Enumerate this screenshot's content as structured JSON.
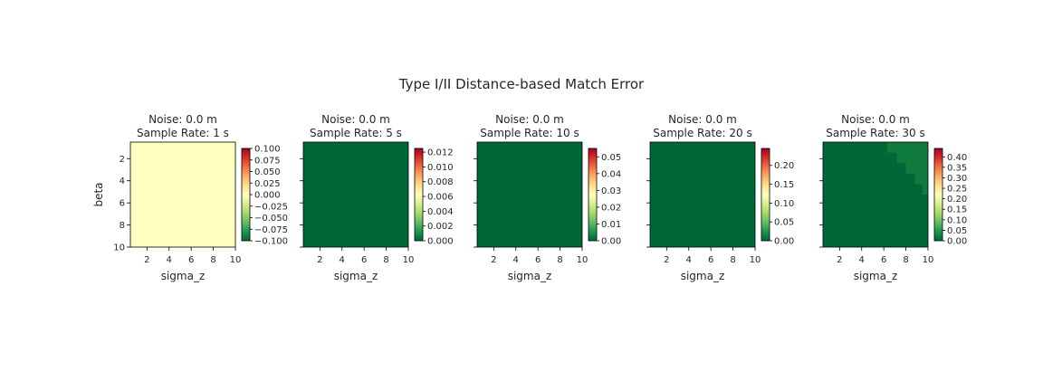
{
  "figure": {
    "title": "Type I/II Distance-based Match Error"
  },
  "chart_data": [
    {
      "type": "heatmap",
      "title_line1": "Noise: 0.0 m",
      "title_line2": "Sample Rate: 1 s",
      "xlabel": "sigma_z",
      "ylabel": "beta",
      "xlim": [
        0.5,
        10
      ],
      "ylim": [
        10,
        0.5
      ],
      "xticks": [
        "2",
        "4",
        "6",
        "8",
        "10"
      ],
      "yticks": [
        "2",
        "4",
        "6",
        "8",
        "10"
      ],
      "colorbar": {
        "min": -0.1,
        "max": 0.1,
        "ticks": [
          "0.100",
          "0.075",
          "0.050",
          "0.025",
          "0.000",
          "−0.025",
          "−0.050",
          "−0.075",
          "−0.100"
        ]
      },
      "fill_color": "#ffffbf",
      "pattern": "uniform"
    },
    {
      "type": "heatmap",
      "title_line1": "Noise: 0.0 m",
      "title_line2": "Sample Rate: 5 s",
      "xlabel": "sigma_z",
      "xlim": [
        0.5,
        10
      ],
      "ylim": [
        10,
        0.5
      ],
      "xticks": [
        "2",
        "4",
        "6",
        "8",
        "10"
      ],
      "colorbar": {
        "min": 0.0,
        "max": 0.0125,
        "ticks": [
          "0.012",
          "0.010",
          "0.008",
          "0.006",
          "0.004",
          "0.002",
          "0.000"
        ]
      },
      "fill_color": "#006837",
      "pattern": "uniform"
    },
    {
      "type": "heatmap",
      "title_line1": "Noise: 0.0 m",
      "title_line2": "Sample Rate: 10 s",
      "xlabel": "sigma_z",
      "xlim": [
        0.5,
        10
      ],
      "ylim": [
        10,
        0.5
      ],
      "xticks": [
        "2",
        "4",
        "6",
        "8",
        "10"
      ],
      "colorbar": {
        "min": 0.0,
        "max": 0.055,
        "ticks": [
          "0.05",
          "0.04",
          "0.03",
          "0.02",
          "0.01",
          "0.00"
        ]
      },
      "fill_color": "#006837",
      "pattern": "uniform"
    },
    {
      "type": "heatmap",
      "title_line1": "Noise: 0.0 m",
      "title_line2": "Sample Rate: 20 s",
      "xlabel": "sigma_z",
      "xlim": [
        0.5,
        10
      ],
      "ylim": [
        10,
        0.5
      ],
      "xticks": [
        "2",
        "4",
        "6",
        "8",
        "10"
      ],
      "colorbar": {
        "min": 0.0,
        "max": 0.245,
        "ticks": [
          "0.20",
          "0.15",
          "0.10",
          "0.05",
          "0.00"
        ]
      },
      "fill_color": "#006837",
      "pattern": "uniform"
    },
    {
      "type": "heatmap",
      "title_line1": "Noise: 0.0 m",
      "title_line2": "Sample Rate: 30 s",
      "xlabel": "sigma_z",
      "xlim": [
        0.5,
        10
      ],
      "ylim": [
        10,
        0.5
      ],
      "xticks": [
        "2",
        "4",
        "6",
        "8",
        "10"
      ],
      "colorbar": {
        "min": 0.0,
        "max": 0.44,
        "ticks": [
          "0.40",
          "0.35",
          "0.30",
          "0.25",
          "0.20",
          "0.15",
          "0.10",
          "0.05",
          "0.00"
        ]
      },
      "fill_color": "#006837",
      "pattern": "corner",
      "corner_color": "#0f7c3d"
    }
  ]
}
